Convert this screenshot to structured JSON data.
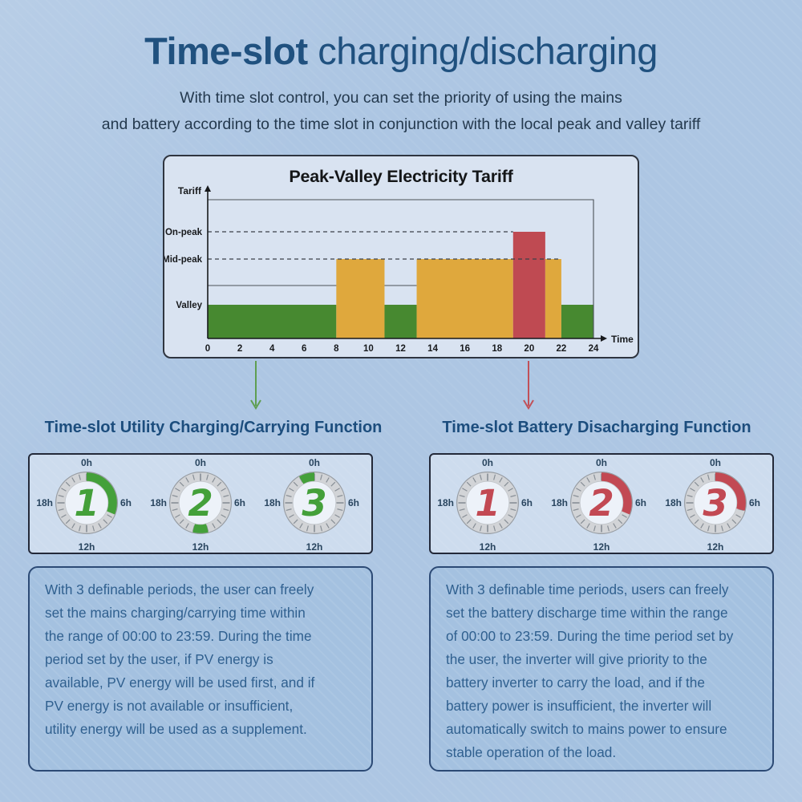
{
  "page": {
    "title_bold": "Time-slot",
    "title_rest": " charging/discharging",
    "subtitle_line1": "With time slot control, you can set the priority of using the mains",
    "subtitle_line2": "and battery according to the time slot in conjunction with the local peak and valley tariff"
  },
  "chart_data": {
    "type": "bar",
    "title": "Peak-Valley Electricity Tariff",
    "xlabel": "Time",
    "ylabel": "Tariff",
    "xlim": [
      0,
      24
    ],
    "x_ticks": [
      0,
      2,
      4,
      6,
      8,
      10,
      12,
      14,
      16,
      18,
      20,
      22,
      24
    ],
    "y_levels": [
      {
        "name": "On-peak",
        "style": "dashed",
        "line_end": 19
      },
      {
        "name": "Mid-peak",
        "style": "dashed",
        "line_end": 22
      },
      {
        "name": "Valley",
        "style": "plain"
      }
    ],
    "segments": [
      {
        "start": 0,
        "end": 8,
        "level": "Valley",
        "color": "green"
      },
      {
        "start": 8,
        "end": 11,
        "level": "Mid-peak",
        "color": "yellow"
      },
      {
        "start": 11,
        "end": 13,
        "level": "Valley",
        "color": "green"
      },
      {
        "start": 13,
        "end": 19,
        "level": "Mid-peak",
        "color": "yellow"
      },
      {
        "start": 19,
        "end": 21,
        "level": "On-peak",
        "color": "red"
      },
      {
        "start": 21,
        "end": 22,
        "level": "Mid-peak",
        "color": "yellow"
      },
      {
        "start": 22,
        "end": 24,
        "level": "Valley",
        "color": "green"
      }
    ],
    "reference_line": {
      "start": 0,
      "end": 13
    },
    "colors": {
      "green": "#478930",
      "yellow": "#dfa83d",
      "red": "#bf4a52"
    }
  },
  "clock_labels": {
    "top": "0h",
    "right": "6h",
    "bottom": "12h",
    "left": "18h"
  },
  "sections": {
    "left": {
      "header": "Time-slot Utility Charging/Carrying Function",
      "arrow_color": "#5f9e52",
      "accent": "#44a03a",
      "clocks": [
        {
          "number": "1",
          "arc_start": 0,
          "arc_end": 7.5
        },
        {
          "number": "2",
          "arc_start": 11,
          "arc_end": 13
        },
        {
          "number": "3",
          "arc_start": 22,
          "arc_end": 24
        }
      ],
      "paragraph": [
        "With 3 definable periods, the user can freely",
        "set the mains charging/carrying time within",
        "the range of 00:00 to 23:59. During the time",
        "period set by the user, if PV energy is",
        "available, PV energy will be used first, and if",
        "PV energy is not available or insufficient,",
        "utility energy will be used as a supplement."
      ]
    },
    "right": {
      "header": "Time-slot Battery Disacharging Function",
      "arrow_color": "#c15058",
      "accent": "#c24953",
      "clocks": [
        {
          "number": "1",
          "arc_start": 0,
          "arc_end": 0
        },
        {
          "number": "2",
          "arc_start": 0,
          "arc_end": 7.5
        },
        {
          "number": "3",
          "arc_start": 0,
          "arc_end": 7
        }
      ],
      "paragraph": [
        "With 3 definable time periods, users can freely",
        "set the battery discharge time within the range",
        "of 00:00 to 23:59. During the time period set by",
        "the user, the inverter will give priority to the",
        "battery inverter to carry the load, and if the",
        "battery power is insufficient, the inverter will",
        "automatically switch to mains power to ensure",
        "stable operation of the load."
      ]
    }
  }
}
